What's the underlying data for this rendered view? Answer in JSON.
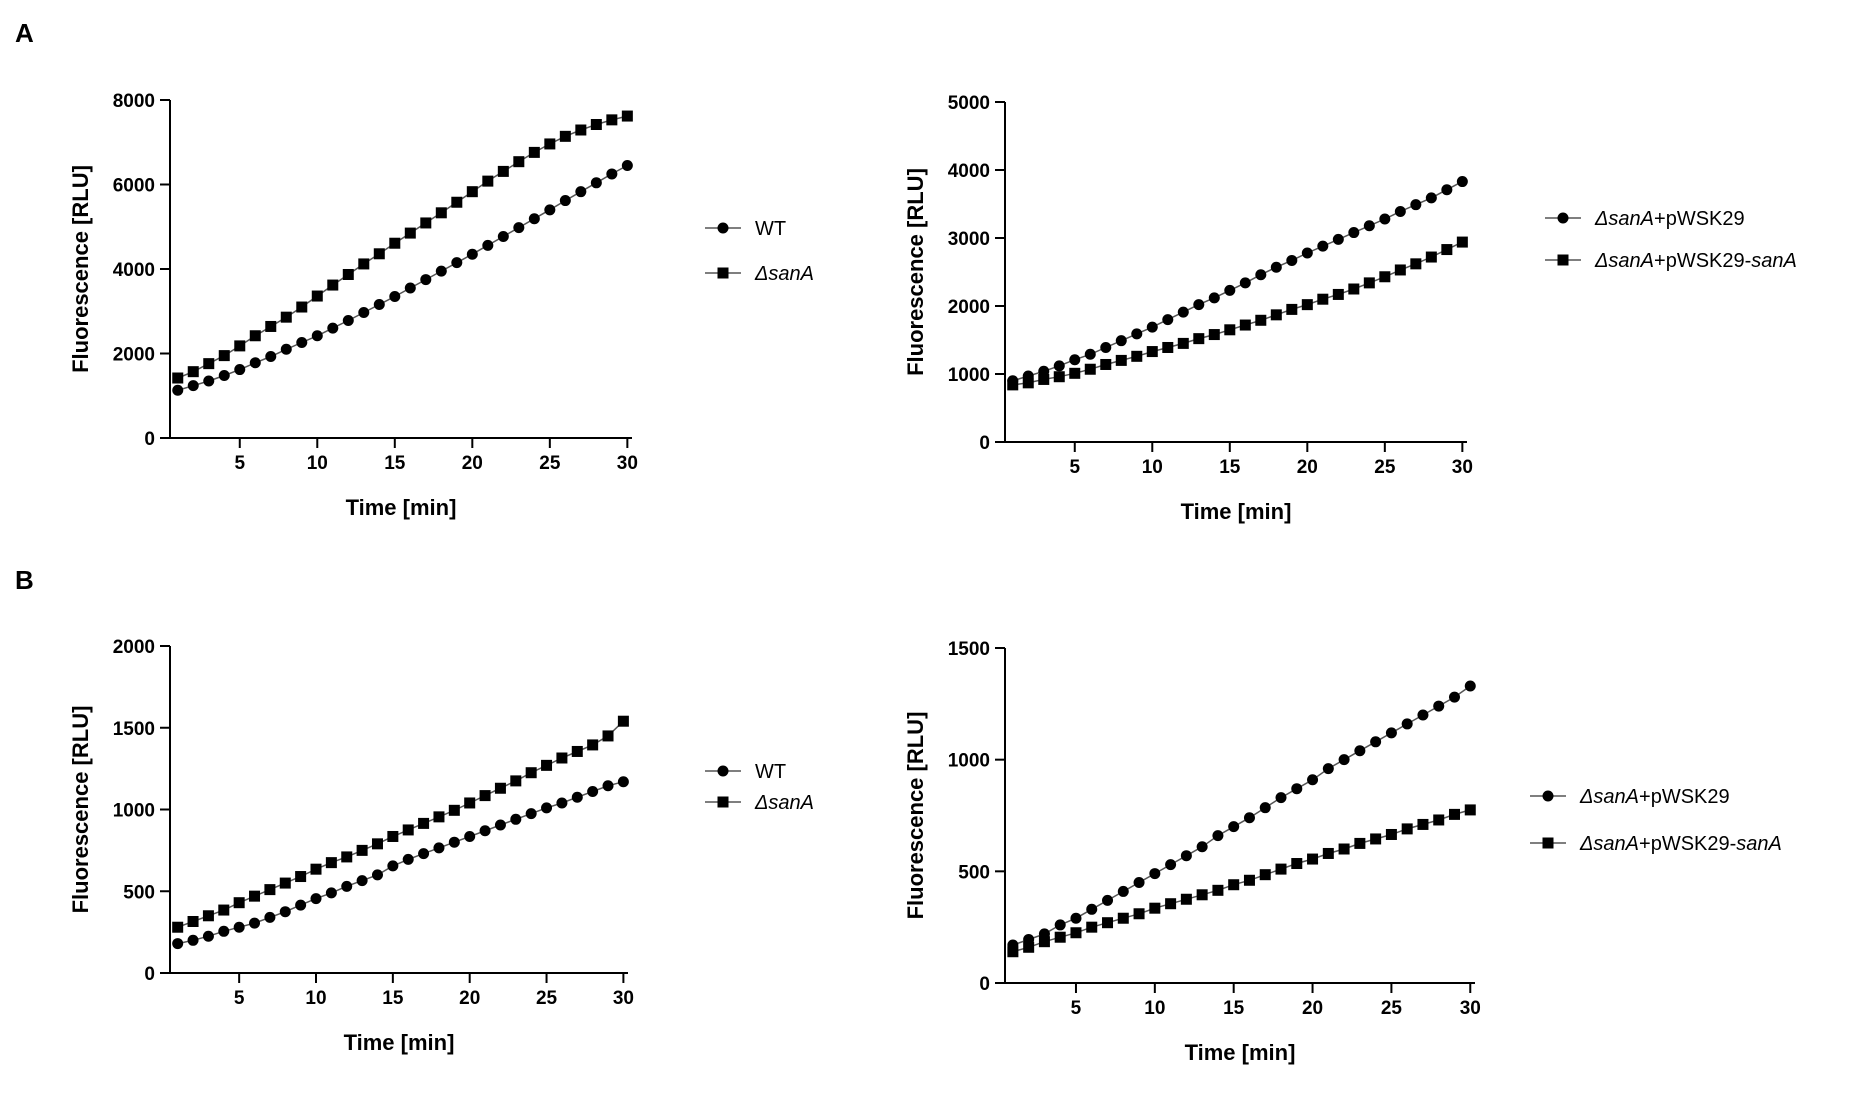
{
  "panels": [
    {
      "label": "A"
    },
    {
      "label": "B"
    }
  ],
  "colors": {
    "series": "#000000",
    "line": "#555555",
    "background": "#ffffff"
  },
  "chart_data": [
    {
      "id": "A-left",
      "panel": "A",
      "type": "line",
      "title": "",
      "xlabel": "Time [min]",
      "ylabel": "Fluorescence [RLU]",
      "xlim": [
        0.5,
        30.3
      ],
      "ylim": [
        0,
        8000
      ],
      "xticks": [
        5,
        10,
        15,
        20,
        25,
        30
      ],
      "yticks": [
        0,
        2000,
        4000,
        6000,
        8000
      ],
      "x": [
        1,
        2,
        3,
        4,
        5,
        6,
        7,
        8,
        9,
        10,
        11,
        12,
        13,
        14,
        15,
        16,
        17,
        18,
        19,
        20,
        21,
        22,
        23,
        24,
        25,
        26,
        27,
        28,
        29,
        30
      ],
      "legend": "right",
      "series": [
        {
          "name": "WT",
          "italic": false,
          "marker": "circle",
          "values": [
            1130,
            1240,
            1350,
            1480,
            1620,
            1780,
            1930,
            2100,
            2260,
            2420,
            2600,
            2780,
            2970,
            3160,
            3350,
            3550,
            3750,
            3950,
            4150,
            4350,
            4560,
            4770,
            4980,
            5190,
            5400,
            5620,
            5830,
            6040,
            6250,
            6450
          ]
        },
        {
          "name": "ΔsanA",
          "italic": true,
          "marker": "square",
          "values": [
            1420,
            1570,
            1760,
            1950,
            2180,
            2420,
            2640,
            2860,
            3100,
            3360,
            3620,
            3870,
            4120,
            4360,
            4610,
            4850,
            5090,
            5330,
            5580,
            5830,
            6080,
            6310,
            6540,
            6760,
            6960,
            7140,
            7290,
            7420,
            7530,
            7620
          ]
        }
      ]
    },
    {
      "id": "A-right",
      "panel": "A",
      "type": "line",
      "title": "",
      "xlabel": "Time [min]",
      "ylabel": "Fluorescence [RLU]",
      "xlim": [
        0.5,
        30.3
      ],
      "ylim": [
        0,
        5000
      ],
      "xticks": [
        5,
        10,
        15,
        20,
        25,
        30
      ],
      "yticks": [
        0,
        1000,
        2000,
        3000,
        4000,
        5000
      ],
      "x": [
        1,
        2,
        3,
        4,
        5,
        6,
        7,
        8,
        9,
        10,
        11,
        12,
        13,
        14,
        15,
        16,
        17,
        18,
        19,
        20,
        21,
        22,
        23,
        24,
        25,
        26,
        27,
        28,
        29,
        30
      ],
      "legend": "right",
      "series": [
        {
          "name": "ΔsanA",
          "suffix": "+pWSK29",
          "italic": true,
          "marker": "circle",
          "values": [
            900,
            970,
            1040,
            1120,
            1210,
            1290,
            1390,
            1490,
            1590,
            1690,
            1800,
            1910,
            2020,
            2120,
            2230,
            2340,
            2460,
            2570,
            2670,
            2780,
            2880,
            2980,
            3080,
            3180,
            3280,
            3390,
            3490,
            3590,
            3710,
            3830
          ]
        },
        {
          "name": "ΔsanA",
          "suffix": "+pWSK29-",
          "suffix_italic": "sanA",
          "italic": true,
          "marker": "square",
          "values": [
            840,
            870,
            920,
            960,
            1010,
            1070,
            1140,
            1200,
            1260,
            1330,
            1390,
            1450,
            1520,
            1580,
            1650,
            1720,
            1790,
            1870,
            1950,
            2020,
            2100,
            2170,
            2250,
            2340,
            2430,
            2530,
            2620,
            2720,
            2830,
            2940
          ]
        }
      ]
    },
    {
      "id": "B-left",
      "panel": "B",
      "type": "line",
      "title": "",
      "xlabel": "Time [min]",
      "ylabel": "Fluorescence [RLU]",
      "xlim": [
        0.5,
        30.3
      ],
      "ylim": [
        0,
        2000
      ],
      "xticks": [
        5,
        10,
        15,
        20,
        25,
        30
      ],
      "yticks": [
        0,
        500,
        1000,
        1500,
        2000
      ],
      "x": [
        1,
        2,
        3,
        4,
        5,
        6,
        7,
        8,
        9,
        10,
        11,
        12,
        13,
        14,
        15,
        16,
        17,
        18,
        19,
        20,
        21,
        22,
        23,
        24,
        25,
        26,
        27,
        28,
        29,
        30
      ],
      "legend": "right",
      "series": [
        {
          "name": "WT",
          "italic": false,
          "marker": "circle",
          "values": [
            180,
            200,
            225,
            255,
            280,
            305,
            340,
            375,
            415,
            455,
            490,
            530,
            565,
            600,
            655,
            695,
            730,
            765,
            800,
            835,
            870,
            905,
            940,
            975,
            1010,
            1040,
            1075,
            1110,
            1145,
            1170
          ]
        },
        {
          "name": "ΔsanA",
          "italic": true,
          "marker": "square",
          "values": [
            280,
            315,
            350,
            385,
            430,
            470,
            510,
            550,
            590,
            635,
            675,
            710,
            750,
            790,
            835,
            875,
            915,
            955,
            995,
            1040,
            1085,
            1130,
            1175,
            1225,
            1270,
            1315,
            1355,
            1395,
            1450,
            1540
          ]
        }
      ]
    },
    {
      "id": "B-right",
      "panel": "B",
      "type": "line",
      "title": "",
      "xlabel": "Time [min]",
      "ylabel": "Fluorescence [RLU]",
      "xlim": [
        0.5,
        30.3
      ],
      "ylim": [
        0,
        1500
      ],
      "xticks": [
        5,
        10,
        15,
        20,
        25,
        30
      ],
      "yticks": [
        0,
        500,
        1000,
        1500
      ],
      "x": [
        1,
        2,
        3,
        4,
        5,
        6,
        7,
        8,
        9,
        10,
        11,
        12,
        13,
        14,
        15,
        16,
        17,
        18,
        19,
        20,
        21,
        22,
        23,
        24,
        25,
        26,
        27,
        28,
        29,
        30
      ],
      "legend": "right",
      "series": [
        {
          "name": "ΔsanA",
          "suffix": "+pWSK29",
          "italic": true,
          "marker": "circle",
          "values": [
            170,
            195,
            220,
            260,
            290,
            330,
            370,
            410,
            450,
            490,
            530,
            570,
            610,
            660,
            700,
            740,
            785,
            830,
            870,
            910,
            960,
            1000,
            1040,
            1080,
            1120,
            1160,
            1200,
            1240,
            1280,
            1330
          ]
        },
        {
          "name": "ΔsanA",
          "suffix": "+pWSK29-",
          "suffix_italic": "sanA",
          "italic": true,
          "marker": "square",
          "values": [
            140,
            160,
            185,
            205,
            225,
            250,
            270,
            290,
            310,
            335,
            355,
            375,
            395,
            415,
            440,
            460,
            485,
            510,
            535,
            555,
            580,
            600,
            625,
            645,
            665,
            690,
            710,
            730,
            755,
            775
          ]
        }
      ]
    }
  ]
}
